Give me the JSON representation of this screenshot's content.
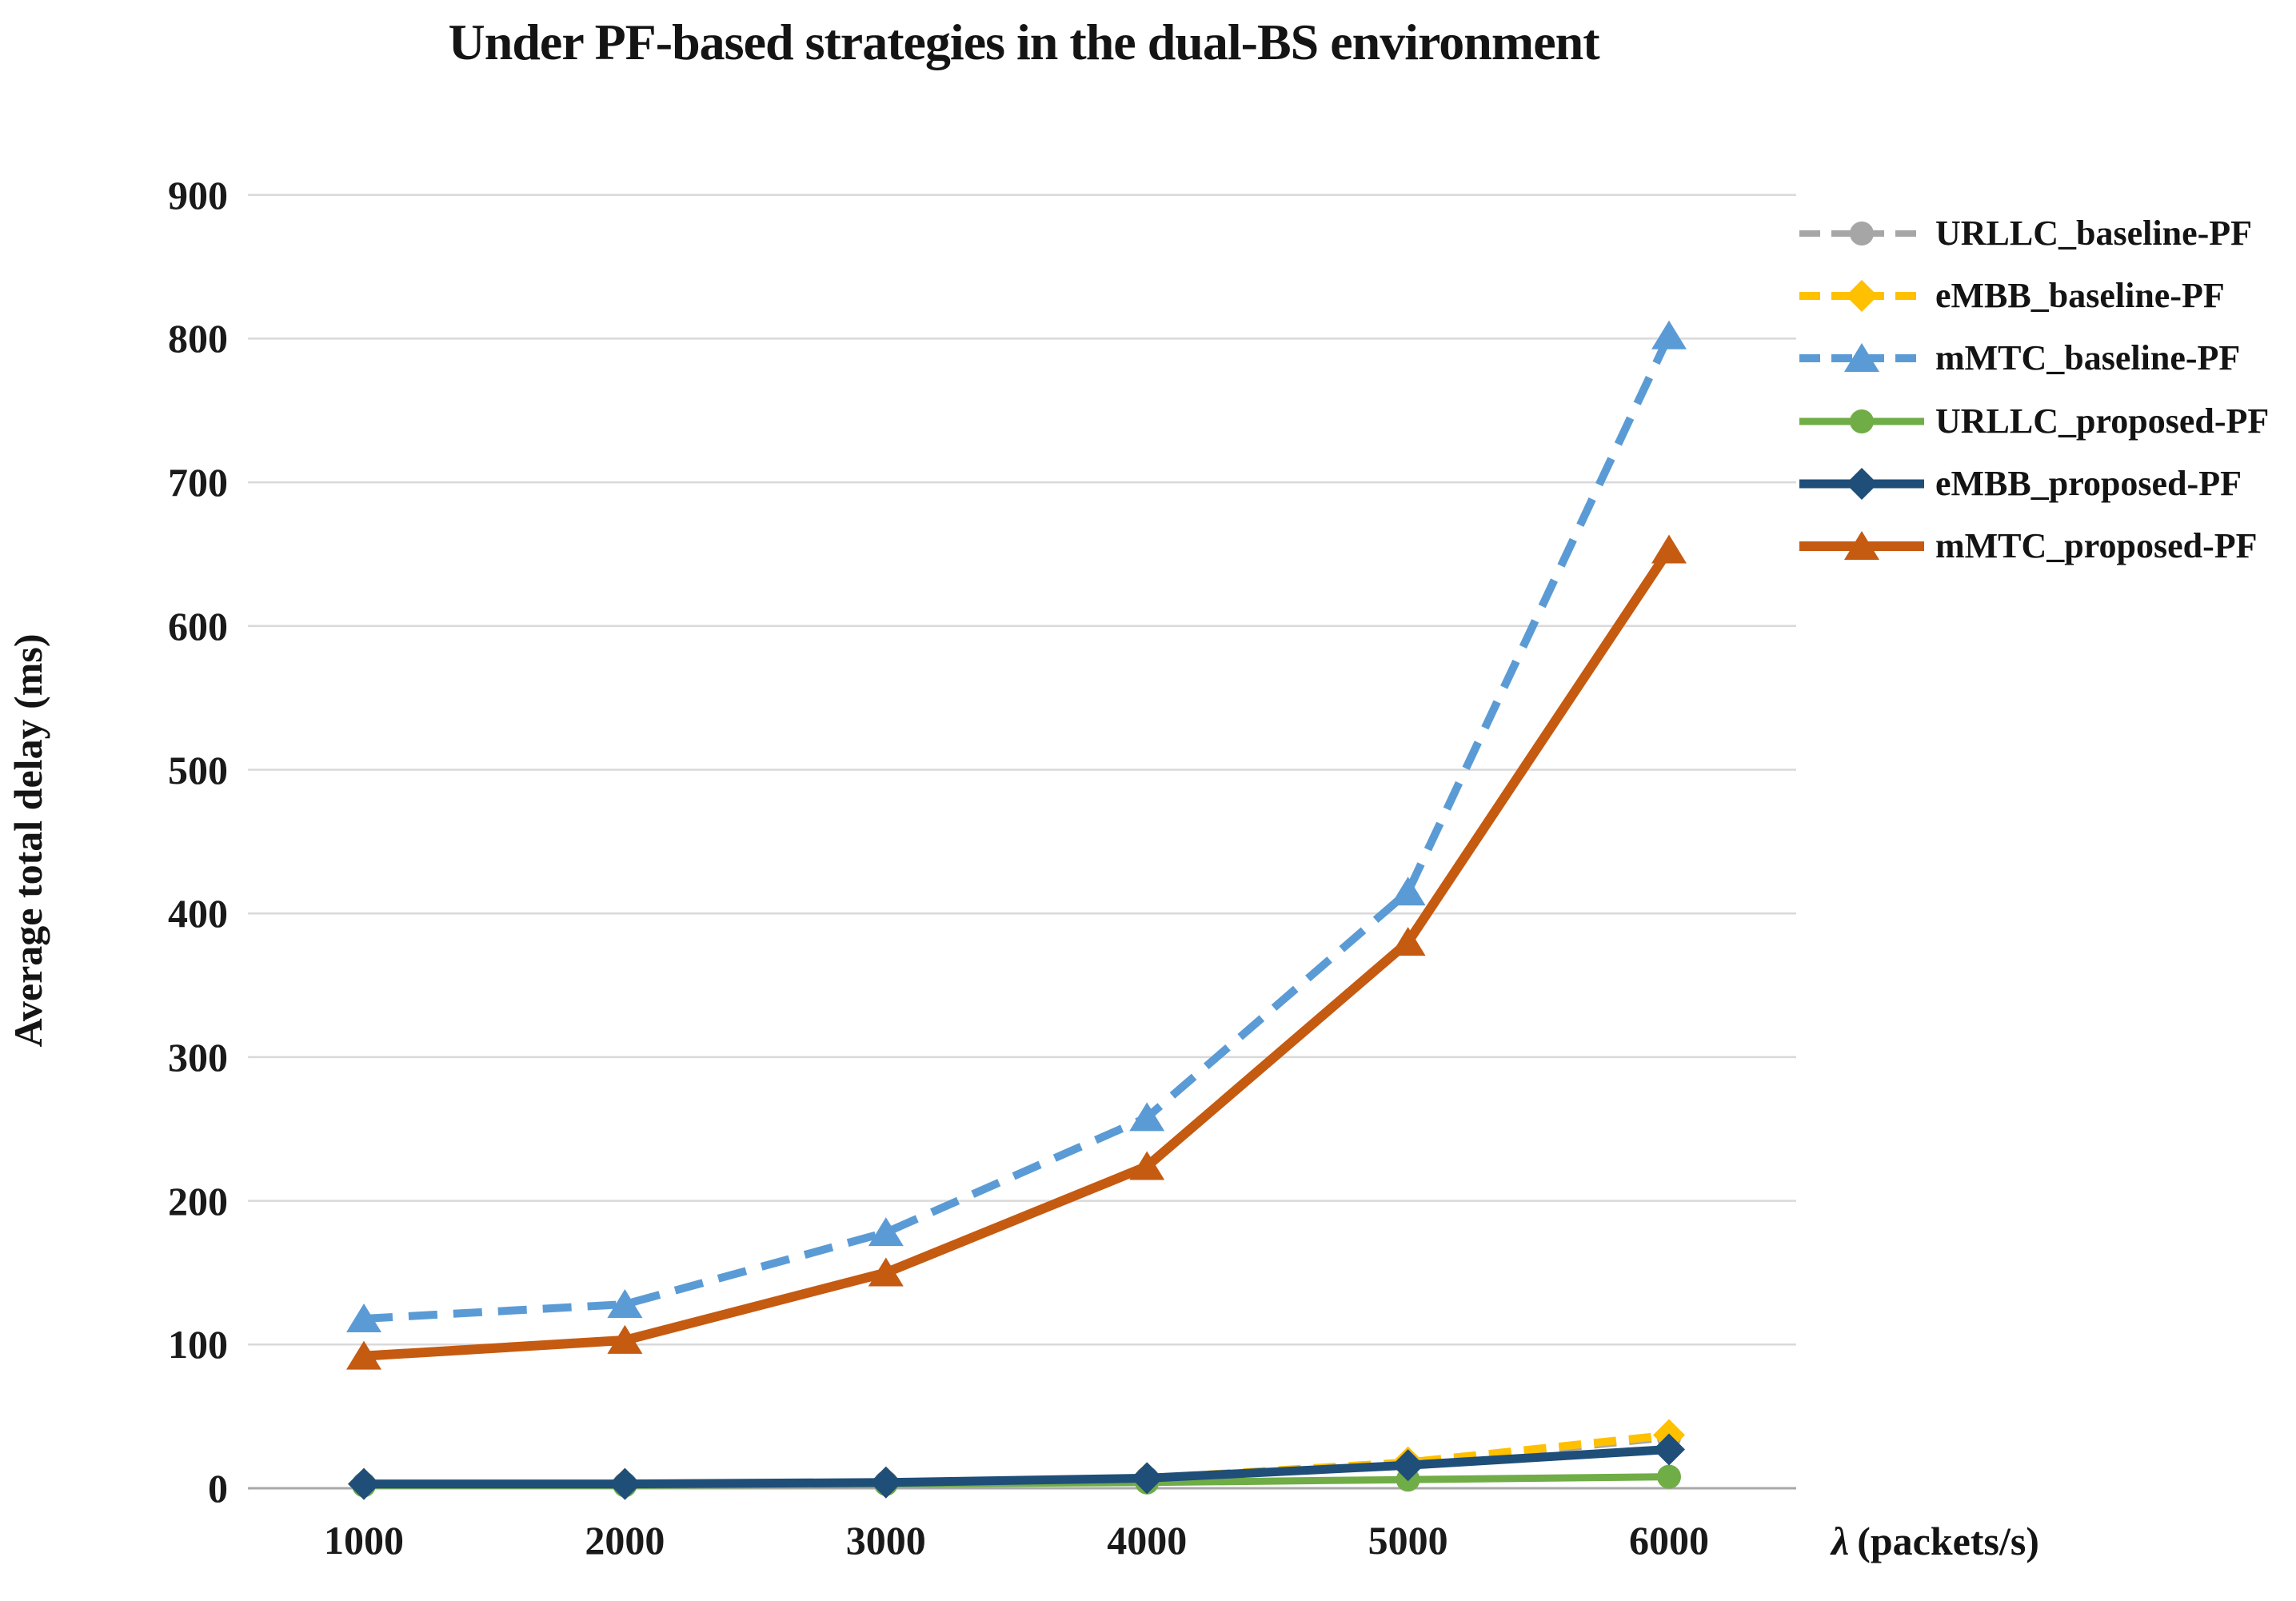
{
  "title": "Under PF-based strategies in the dual-BS environment",
  "y_axis": {
    "label": "Average total delay (ms)",
    "ticks": [
      0,
      100,
      200,
      300,
      400,
      500,
      600,
      700,
      800,
      900
    ]
  },
  "x_axis": {
    "label": "λ (packets/s)",
    "symbol": "λ",
    "unit": "(packets/s)",
    "ticks": [
      "1000",
      "2000",
      "3000",
      "4000",
      "5000",
      "6000"
    ]
  },
  "colors": {
    "gridline": "#d9d9d9",
    "axis_line": "#a9a9a9",
    "text": "#1a1a1a"
  },
  "legend": [
    {
      "label": "URLLC_baseline-PF"
    },
    {
      "label": "eMBB_baseline-PF"
    },
    {
      "label": "mMTC_baseline-PF"
    },
    {
      "label": "URLLC_proposed-PF"
    },
    {
      "label": "eMBB_proposed-PF"
    },
    {
      "label": "mMTC_proposed-PF"
    }
  ],
  "chart_data": {
    "type": "line",
    "title": "Under PF-based strategies in the dual-BS environment",
    "xlabel": "λ (packets/s)",
    "ylabel": "Average total delay (ms)",
    "x": [
      1000,
      2000,
      3000,
      4000,
      5000,
      6000
    ],
    "ylim": [
      0,
      900
    ],
    "ytick_step": 100,
    "grid": true,
    "legend_position": "right",
    "series": [
      {
        "name": "URLLC_baseline-PF",
        "color": "#a6a6a6",
        "dash": true,
        "marker": "circle",
        "line_width": 8,
        "values": [
          3,
          3,
          4,
          7,
          17,
          35
        ]
      },
      {
        "name": "eMBB_baseline-PF",
        "color": "#ffc000",
        "dash": true,
        "marker": "diamond",
        "line_width": 10,
        "values": [
          3,
          3,
          4,
          7,
          18,
          37
        ]
      },
      {
        "name": "mMTC_baseline-PF",
        "color": "#5b9bd5",
        "dash": true,
        "marker": "triangle",
        "line_width": 10,
        "values": [
          118,
          128,
          178,
          258,
          415,
          802
        ]
      },
      {
        "name": "URLLC_proposed-PF",
        "color": "#70ad47",
        "dash": false,
        "marker": "circle",
        "line_width": 9,
        "values": [
          2,
          2,
          3,
          4,
          6,
          8
        ]
      },
      {
        "name": "eMBB_proposed-PF",
        "color": "#1f4e79",
        "dash": false,
        "marker": "diamond",
        "line_width": 11,
        "values": [
          3,
          3,
          4,
          7,
          16,
          27
        ]
      },
      {
        "name": "mMTC_proposed-PF",
        "color": "#c55a11",
        "dash": false,
        "marker": "triangle",
        "line_width": 12,
        "values": [
          92,
          103,
          150,
          224,
          380,
          653
        ]
      }
    ]
  }
}
